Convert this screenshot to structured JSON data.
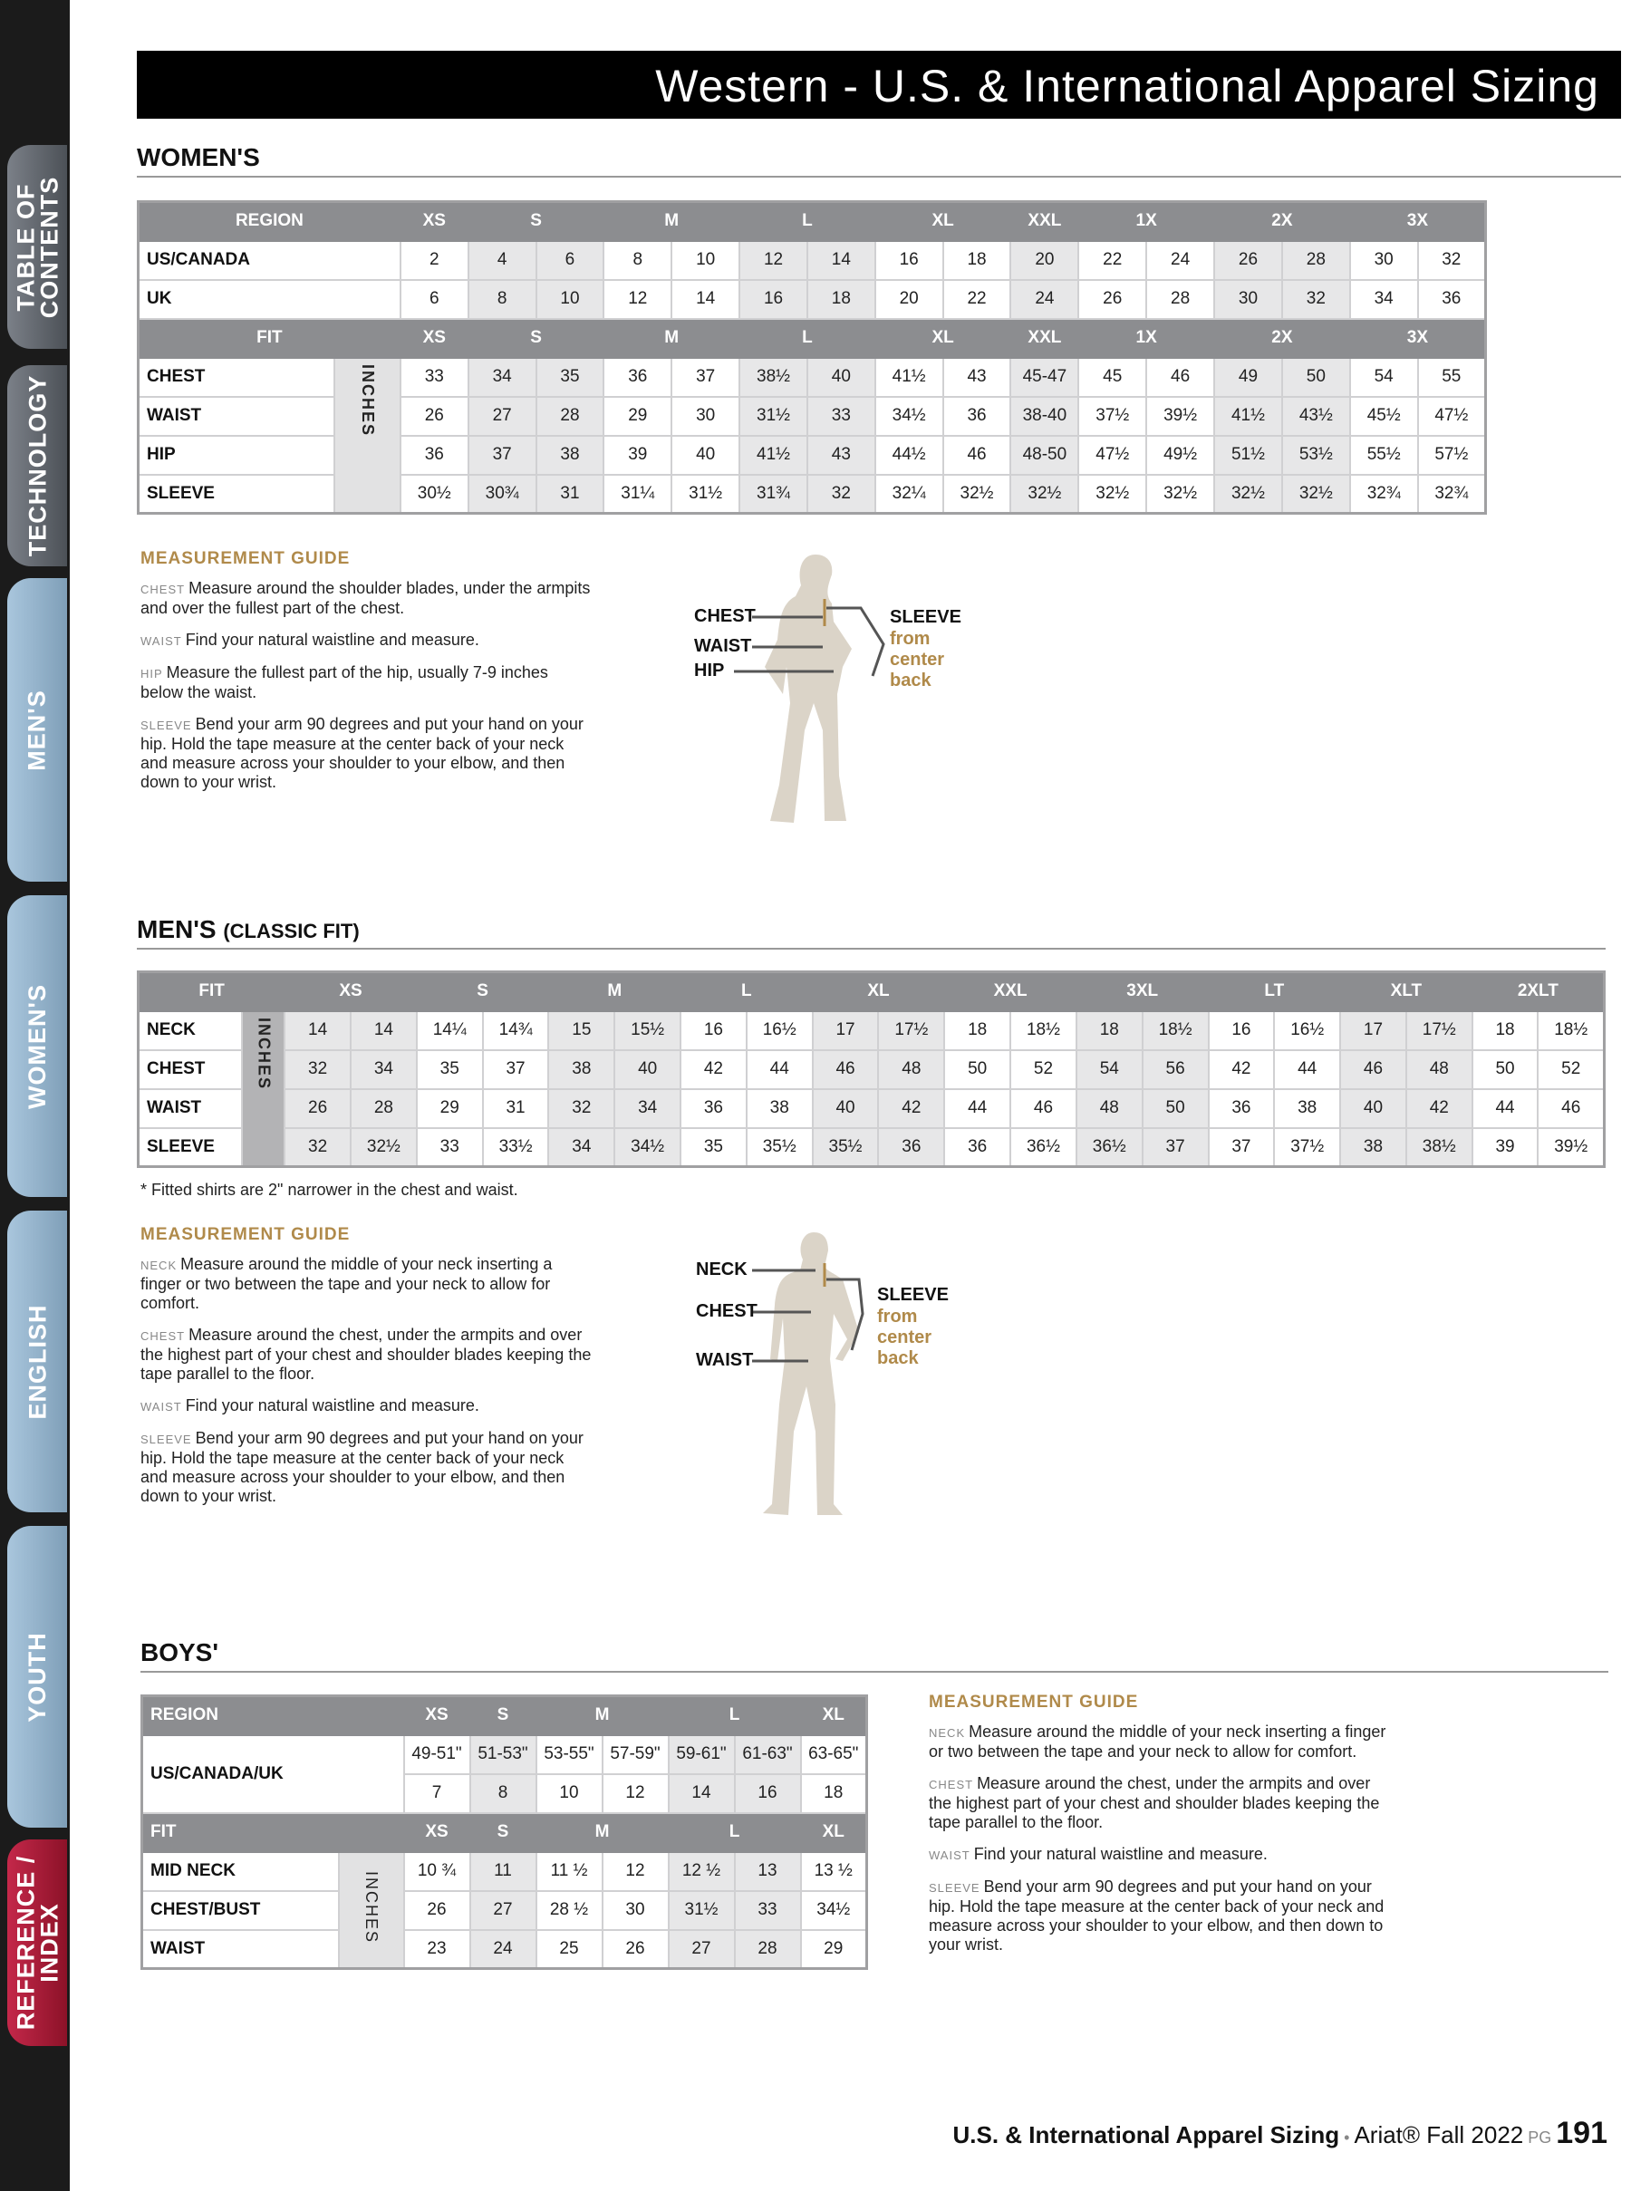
{
  "sidebar": {
    "tabs": [
      {
        "label": "TABLE OF\nCONTENTS",
        "style": "dark"
      },
      {
        "label": "TECHNOLOGY",
        "style": "dark"
      },
      {
        "label": "MEN'S",
        "style": "blue"
      },
      {
        "label": "WOMEN'S",
        "style": "blue"
      },
      {
        "label": "ENGLISH",
        "style": "blue"
      },
      {
        "label": "YOUTH",
        "style": "blue"
      },
      {
        "label": "REFERENCE /\nINDEX",
        "style": "red"
      }
    ]
  },
  "title": "Western - U.S. & International Apparel Sizing",
  "colors": {
    "header_gray": "#8c8d90",
    "shade": "#e7e7e8",
    "guide_gold": "#b08a4a",
    "active_tab": "#c4284a"
  },
  "womens": {
    "heading": "WOMEN'S",
    "inches_label": "INCHES",
    "shaded_columns": [
      1,
      2,
      5,
      6,
      9,
      12,
      13
    ],
    "region_header": {
      "label": "REGION",
      "groups": [
        [
          "XS",
          1
        ],
        [
          "S",
          2
        ],
        [
          "M",
          2
        ],
        [
          "L",
          2
        ],
        [
          "XL",
          2
        ],
        [
          "XXL",
          1
        ],
        [
          "1X",
          2
        ],
        [
          "2X",
          2
        ],
        [
          "3X",
          2
        ]
      ]
    },
    "region_rows": [
      {
        "label": "US/CANADA",
        "values": [
          "2",
          "4",
          "6",
          "8",
          "10",
          "12",
          "14",
          "16",
          "18",
          "20",
          "22",
          "24",
          "26",
          "28",
          "30",
          "32"
        ]
      },
      {
        "label": "UK",
        "values": [
          "6",
          "8",
          "10",
          "12",
          "14",
          "16",
          "18",
          "20",
          "22",
          "24",
          "26",
          "28",
          "30",
          "32",
          "34",
          "36"
        ]
      }
    ],
    "fit_header": {
      "label": "FIT",
      "groups": [
        [
          "XS",
          1
        ],
        [
          "S",
          2
        ],
        [
          "M",
          2
        ],
        [
          "L",
          2
        ],
        [
          "XL",
          2
        ],
        [
          "XXL",
          1
        ],
        [
          "1X",
          2
        ],
        [
          "2X",
          2
        ],
        [
          "3X",
          2
        ]
      ]
    },
    "fit_rows": [
      {
        "label": "CHEST",
        "values": [
          "33",
          "34",
          "35",
          "36",
          "37",
          "38½",
          "40",
          "41½",
          "43",
          "45-47",
          "45",
          "46",
          "49",
          "50",
          "54",
          "55"
        ]
      },
      {
        "label": "WAIST",
        "values": [
          "26",
          "27",
          "28",
          "29",
          "30",
          "31½",
          "33",
          "34½",
          "36",
          "38-40",
          "37½",
          "39½",
          "41½",
          "43½",
          "45½",
          "47½"
        ]
      },
      {
        "label": "HIP",
        "values": [
          "36",
          "37",
          "38",
          "39",
          "40",
          "41½",
          "43",
          "44½",
          "46",
          "48-50",
          "47½",
          "49½",
          "51½",
          "53½",
          "55½",
          "57½"
        ]
      },
      {
        "label": "SLEEVE",
        "values": [
          "30½",
          "30¾",
          "31",
          "31¼",
          "31½",
          "31¾",
          "32",
          "32¼",
          "32½",
          "32½",
          "32½",
          "32½",
          "32½",
          "32½",
          "32¾",
          "32¾"
        ]
      }
    ],
    "guide": {
      "title": "MEASUREMENT GUIDE",
      "items": [
        {
          "key": "CHEST",
          "text": "Measure around the shoulder blades, under the armpits and over the fullest part of the chest."
        },
        {
          "key": "WAIST",
          "text": "Find your natural waistline and measure."
        },
        {
          "key": "HIP",
          "text": "Measure the fullest part of the hip, usually 7-9 inches below the waist."
        },
        {
          "key": "SLEEVE",
          "text": "Bend your arm 90 degrees and put your hand on your hip. Hold the tape measure at the center back of your neck and measure across your shoulder to your elbow, and then down to your wrist."
        }
      ]
    },
    "figure": {
      "labels": [
        "CHEST",
        "WAIST",
        "HIP"
      ],
      "sleeve": "SLEEVE",
      "sleeve_note": "from\ncenter\nback"
    }
  },
  "mens": {
    "heading": "MEN'S",
    "subheading": "(CLASSIC FIT)",
    "inches_label": "INCHES",
    "shaded_columns": [
      0,
      1,
      4,
      5,
      8,
      9,
      12,
      13,
      16,
      17
    ],
    "header": {
      "label": "FIT",
      "groups": [
        [
          "XS",
          2
        ],
        [
          "S",
          2
        ],
        [
          "M",
          2
        ],
        [
          "L",
          2
        ],
        [
          "XL",
          2
        ],
        [
          "XXL",
          2
        ],
        [
          "3XL",
          2
        ],
        [
          "LT",
          2
        ],
        [
          "XLT",
          2
        ],
        [
          "2XLT",
          2
        ]
      ]
    },
    "rows": [
      {
        "label": "NECK",
        "values": [
          "14",
          "14",
          "14¼",
          "14¾",
          "15",
          "15½",
          "16",
          "16½",
          "17",
          "17½",
          "18",
          "18½",
          "18",
          "18½",
          "16",
          "16½",
          "17",
          "17½",
          "18",
          "18½"
        ]
      },
      {
        "label": "CHEST",
        "values": [
          "32",
          "34",
          "35",
          "37",
          "38",
          "40",
          "42",
          "44",
          "46",
          "48",
          "50",
          "52",
          "54",
          "56",
          "42",
          "44",
          "46",
          "48",
          "50",
          "52"
        ]
      },
      {
        "label": "WAIST",
        "values": [
          "26",
          "28",
          "29",
          "31",
          "32",
          "34",
          "36",
          "38",
          "40",
          "42",
          "44",
          "46",
          "48",
          "50",
          "36",
          "38",
          "40",
          "42",
          "44",
          "46"
        ]
      },
      {
        "label": "SLEEVE",
        "values": [
          "32",
          "32½",
          "33",
          "33½",
          "34",
          "34½",
          "35",
          "35½",
          "35½",
          "36",
          "36",
          "36½",
          "36½",
          "37",
          "37",
          "37½",
          "38",
          "38½",
          "39",
          "39½"
        ]
      }
    ],
    "note": "* Fitted shirts are 2\" narrower in the chest and waist.",
    "guide": {
      "title": "MEASUREMENT GUIDE",
      "items": [
        {
          "key": "NECK",
          "text": "Measure around the middle of your neck inserting a finger or two between the tape and your neck to allow for comfort."
        },
        {
          "key": "CHEST",
          "text": "Measure around the chest, under the armpits and over the highest part of your chest and shoulder blades keeping the tape parallel to the floor."
        },
        {
          "key": "WAIST",
          "text": "Find your natural waistline and measure."
        },
        {
          "key": "SLEEVE",
          "text": "Bend your arm 90 degrees and put your hand on your hip. Hold the tape measure at the center back of your neck and measure across your shoulder to your elbow, and then down to your wrist."
        }
      ]
    },
    "figure": {
      "labels": [
        "NECK",
        "CHEST",
        "WAIST"
      ],
      "sleeve": "SLEEVE",
      "sleeve_note": "from\ncenter\nback"
    }
  },
  "boys": {
    "heading": "BOYS'",
    "inches_label": "INCHES",
    "shaded_columns": [
      1,
      4,
      5
    ],
    "region_header": {
      "label": "REGION",
      "groups": [
        [
          "XS",
          1
        ],
        [
          "S",
          1
        ],
        [
          "M",
          2
        ],
        [
          "L",
          2
        ],
        [
          "XL",
          1
        ]
      ]
    },
    "region_label": "US/CANADA/UK",
    "region_rows": [
      {
        "values": [
          "49-51\"",
          "51-53\"",
          "53-55\"",
          "57-59\"",
          "59-61\"",
          "61-63\"",
          "63-65\""
        ]
      },
      {
        "values": [
          "7",
          "8",
          "10",
          "12",
          "14",
          "16",
          "18"
        ]
      }
    ],
    "fit_header": {
      "label": "FIT",
      "groups": [
        [
          "XS",
          1
        ],
        [
          "S",
          1
        ],
        [
          "M",
          2
        ],
        [
          "L",
          2
        ],
        [
          "XL",
          1
        ]
      ]
    },
    "fit_rows": [
      {
        "label": "MID NECK",
        "values": [
          "10 ¾",
          "11",
          "11 ½",
          "12",
          "12 ½",
          "13",
          "13 ½"
        ]
      },
      {
        "label": "CHEST/BUST",
        "values": [
          "26",
          "27",
          "28 ½",
          "30",
          "31½",
          "33",
          "34½"
        ]
      },
      {
        "label": "WAIST",
        "values": [
          "23",
          "24",
          "25",
          "26",
          "27",
          "28",
          "29"
        ]
      }
    ],
    "guide": {
      "title": "MEASUREMENT GUIDE",
      "items": [
        {
          "key": "NECK",
          "text": "Measure around the middle of your neck inserting a finger or two between the tape and your neck to allow for comfort."
        },
        {
          "key": "CHEST",
          "text": "Measure around the chest, under the armpits and over the highest part of your chest and shoulder blades keeping the tape parallel to the floor."
        },
        {
          "key": "WAIST",
          "text": "Find your natural waistline and measure."
        },
        {
          "key": "SLEEVE",
          "text": "Bend your arm 90 degrees and put your hand on your hip. Hold the tape measure at the center back of your neck and measure across your shoulder to your elbow, and then down to your wrist."
        }
      ]
    }
  },
  "footer": {
    "section": "U.S. & International Apparel Sizing",
    "sep": " • ",
    "brand": "Ariat® Fall 2022",
    "pg_label": " PG ",
    "page": "191"
  }
}
